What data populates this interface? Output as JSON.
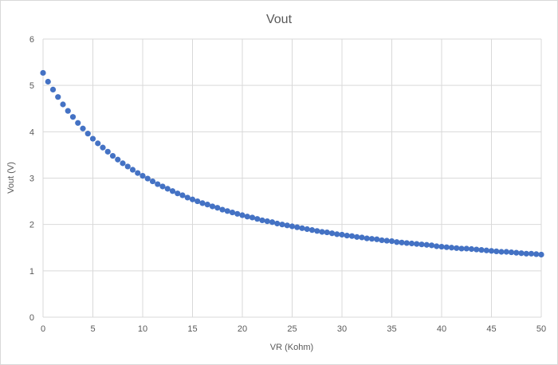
{
  "chart_data": {
    "type": "scatter",
    "title": "Vout",
    "xlabel": "VR (Kohm)",
    "ylabel": "Vout (V)",
    "xlim": [
      0,
      50
    ],
    "ylim": [
      0,
      6
    ],
    "x_ticks": [
      "0",
      "5",
      "10",
      "15",
      "20",
      "25",
      "30",
      "35",
      "40",
      "45",
      "50"
    ],
    "y_ticks": [
      "0",
      "1",
      "2",
      "3",
      "4",
      "5",
      "6"
    ],
    "grid": true,
    "legend": "none",
    "series": [
      {
        "color": "#4472c4",
        "marker": "circle",
        "x": [
          0,
          0.5,
          1,
          1.5,
          2,
          2.5,
          3,
          3.5,
          4,
          4.5,
          5,
          5.5,
          6,
          6.5,
          7,
          7.5,
          8,
          8.5,
          9,
          9.5,
          10,
          10.5,
          11,
          11.5,
          12,
          12.5,
          13,
          13.5,
          14,
          14.5,
          15,
          15.5,
          16,
          16.5,
          17,
          17.5,
          18,
          18.5,
          19,
          19.5,
          20,
          20.5,
          21,
          21.5,
          22,
          22.5,
          23,
          23.5,
          24,
          24.5,
          25,
          25.5,
          26,
          26.5,
          27,
          27.5,
          28,
          28.5,
          29,
          29.5,
          30,
          30.5,
          31,
          31.5,
          32,
          32.5,
          33,
          33.5,
          34,
          34.5,
          35,
          35.5,
          36,
          36.5,
          37,
          37.5,
          38,
          38.5,
          39,
          39.5,
          40,
          40.5,
          41,
          41.5,
          42,
          42.5,
          43,
          43.5,
          44,
          44.5,
          45,
          45.5,
          46,
          46.5,
          47,
          47.5,
          48,
          48.5,
          49,
          49.5,
          50
        ],
        "y": [
          5.27,
          5.08,
          4.91,
          4.75,
          4.59,
          4.45,
          4.32,
          4.19,
          4.07,
          3.96,
          3.85,
          3.75,
          3.66,
          3.57,
          3.48,
          3.4,
          3.32,
          3.25,
          3.18,
          3.11,
          3.05,
          2.99,
          2.93,
          2.87,
          2.82,
          2.77,
          2.72,
          2.67,
          2.63,
          2.58,
          2.54,
          2.5,
          2.46,
          2.43,
          2.39,
          2.36,
          2.32,
          2.29,
          2.26,
          2.23,
          2.2,
          2.17,
          2.15,
          2.12,
          2.09,
          2.07,
          2.05,
          2.02,
          2.0,
          1.98,
          1.96,
          1.94,
          1.92,
          1.9,
          1.88,
          1.86,
          1.84,
          1.83,
          1.81,
          1.79,
          1.78,
          1.76,
          1.75,
          1.73,
          1.72,
          1.7,
          1.69,
          1.68,
          1.66,
          1.65,
          1.64,
          1.62,
          1.61,
          1.6,
          1.59,
          1.58,
          1.57,
          1.56,
          1.55,
          1.53,
          1.52,
          1.51,
          1.5,
          1.49,
          1.48,
          1.48,
          1.47,
          1.46,
          1.45,
          1.44,
          1.43,
          1.42,
          1.41,
          1.41,
          1.4,
          1.39,
          1.38,
          1.37,
          1.37,
          1.36,
          1.35
        ]
      }
    ]
  }
}
